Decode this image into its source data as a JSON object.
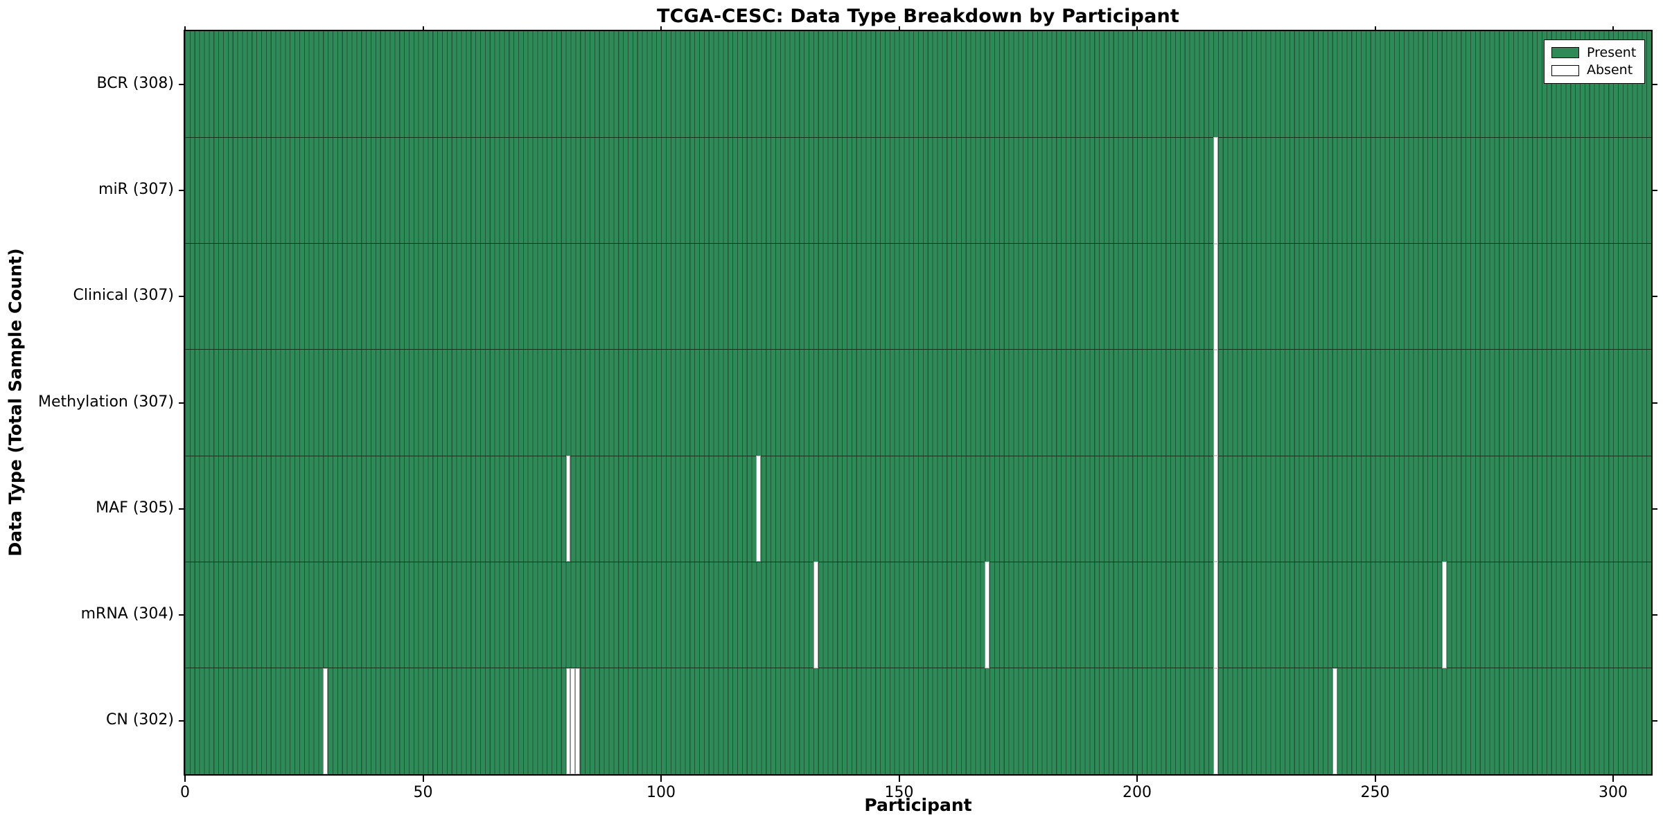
{
  "chart_data": {
    "type": "heatmap",
    "title": "TCGA-CESC: Data Type Breakdown by Participant",
    "xlabel": "Participant",
    "ylabel": "Data Type (Total Sample Count)",
    "n_participants": 308,
    "x_range": [
      0,
      308
    ],
    "x_ticks": [
      0,
      50,
      100,
      150,
      200,
      250,
      300
    ],
    "grid": false,
    "legend_position": "upper right",
    "legend": [
      {
        "label": "Present",
        "color": "#2e8b57"
      },
      {
        "label": "Absent",
        "color": "#ffffff"
      }
    ],
    "rows": [
      {
        "label": "BCR (308)",
        "name": "BCR",
        "total": 308,
        "missing": []
      },
      {
        "label": "miR (307)",
        "name": "miR",
        "total": 307,
        "missing": [
          216
        ]
      },
      {
        "label": "Clinical (307)",
        "name": "Clinical",
        "total": 307,
        "missing": [
          216
        ]
      },
      {
        "label": "Methylation (307)",
        "name": "Methylation",
        "total": 307,
        "missing": [
          216
        ]
      },
      {
        "label": "MAF (305)",
        "name": "MAF",
        "total": 305,
        "missing": [
          80,
          120,
          216
        ]
      },
      {
        "label": "mRNA (304)",
        "name": "mRNA",
        "total": 304,
        "missing": [
          132,
          168,
          216,
          264
        ]
      },
      {
        "label": "CN (302)",
        "name": "CN",
        "total": 302,
        "missing": [
          29,
          80,
          81,
          82,
          216,
          241
        ]
      }
    ],
    "colors": {
      "present": "#2e8b57",
      "absent": "#ffffff",
      "bar_edge": "#1d5737",
      "row_divider": "#14341f",
      "spine": "#000000"
    }
  }
}
